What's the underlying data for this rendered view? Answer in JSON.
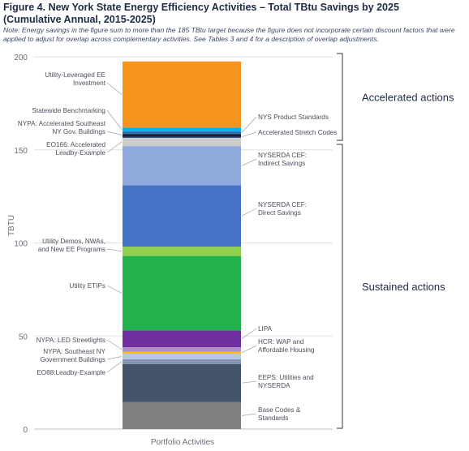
{
  "chart_data": {
    "type": "bar",
    "stacked": true,
    "title": "Figure 4. New York State Energy Efficiency Activities – Total TBtu Savings by 2025",
    "subtitle": "(Cumulative Annual, 2015-2025)",
    "note": "Note: Energy savings in the figure sum to more than the 185 TBtu target because the figure does not incorporate certain discount factors that were applied to adjust for overlap across complementary activities. See Tables 3 and 4 for a description of overlap adjustments.",
    "xlabel": "Portfolio Activities",
    "ylabel": "TBTU",
    "ylim": [
      0,
      200
    ],
    "yticks": [
      0,
      50,
      100,
      150,
      200
    ],
    "grid": true,
    "categories": [
      "Portfolio Activities"
    ],
    "series": [
      {
        "name": "Base Codes & Standards",
        "value": 14.5,
        "color": "#808080",
        "side": "right",
        "lines": [
          "Base Codes &",
          "Standards"
        ]
      },
      {
        "name": "EEPS: Utilities and NYSERDA",
        "value": 20.5,
        "color": "#44546a",
        "side": "right",
        "lines": [
          "EEPS: Utilities and",
          "NYSERDA"
        ]
      },
      {
        "name": "EO88:Leadby-Example",
        "value": 2.5,
        "color": "#8497b0",
        "side": "left",
        "lines": [
          "EO88:Leadby-Example"
        ]
      },
      {
        "name": "NYPA: Southeast NY Government Buildings",
        "value": 3.0,
        "color": "#b4c7e7",
        "side": "left",
        "lines": [
          "NYPA: Southeast NY",
          "Government Buildings"
        ]
      },
      {
        "name": "HCR: WAP and Affordable Housing",
        "value": 1.0,
        "color": "#ffc000",
        "side": "right",
        "lines": [
          "HCR: WAP and",
          "Affordable Housing"
        ]
      },
      {
        "name": "NYPA: LED Streetlights",
        "value": 2.5,
        "color": "#b28dc9",
        "side": "left",
        "lines": [
          "NYPA: LED Streetlights"
        ]
      },
      {
        "name": "LIPA",
        "value": 9.0,
        "color": "#7030a0",
        "side": "right",
        "lines": [
          "LIPA"
        ]
      },
      {
        "name": "Utility ETIPs",
        "value": 40.0,
        "color": "#22b14c",
        "side": "left",
        "lines": [
          "Utility ETIPs"
        ]
      },
      {
        "name": "Utility Demos, NWAs, and New EE Programs",
        "value": 5.0,
        "color": "#92d050",
        "side": "left",
        "lines": [
          "Utility Demos, NWAs,",
          "and New EE Programs"
        ]
      },
      {
        "name": "NYSERDA CEF: Direct Savings",
        "value": 33.0,
        "color": "#4472c4",
        "side": "right",
        "lines": [
          "NYSERDA CEF:",
          "Direct Savings"
        ]
      },
      {
        "name": "NYSERDA CEF: Indirect Savings",
        "value": 21.0,
        "color": "#8faadc",
        "side": "right",
        "lines": [
          "NYSERDA CEF:",
          "Indirect Savings"
        ]
      },
      {
        "name": "EO166: Accelerated Leadby-Example",
        "value": 4.5,
        "color": "#cccccc",
        "side": "left",
        "lines": [
          "EO166: Accelerated",
          "Leadby-Example"
        ]
      },
      {
        "name": "Accelerated Stretch Codes",
        "value": 1.0,
        "color": "#1f3864",
        "side": "right",
        "lines": [
          "Accelerated Stretch Codes"
        ]
      },
      {
        "name": "NYPA: Accelerated Southeast NY Gov. Buildings",
        "value": 1.0,
        "color": "#111111",
        "side": "left",
        "lines": [
          "NYPA: Accelerated Southeast",
          "NY Gov. Buildings"
        ]
      },
      {
        "name": "NYS Product Standards",
        "value": 1.5,
        "color": "#2e75b6",
        "side": "right",
        "lines": [
          "NYS Product Standards"
        ]
      },
      {
        "name": "Statewide Benchmarking",
        "value": 2.0,
        "color": "#00b0f0",
        "side": "left",
        "lines": [
          "Statewide Benchmarking"
        ]
      },
      {
        "name": "Utility-Leveraged EE Investment",
        "value": 35.5,
        "color": "#f7941d",
        "side": "left",
        "lines": [
          "Utility-Leveraged EE",
          "Investment"
        ]
      }
    ],
    "groups": [
      {
        "name": "Sustained actions",
        "from": 0,
        "to": 153
      },
      {
        "name": "Accelerated actions",
        "from": 153,
        "to": 203
      }
    ]
  }
}
